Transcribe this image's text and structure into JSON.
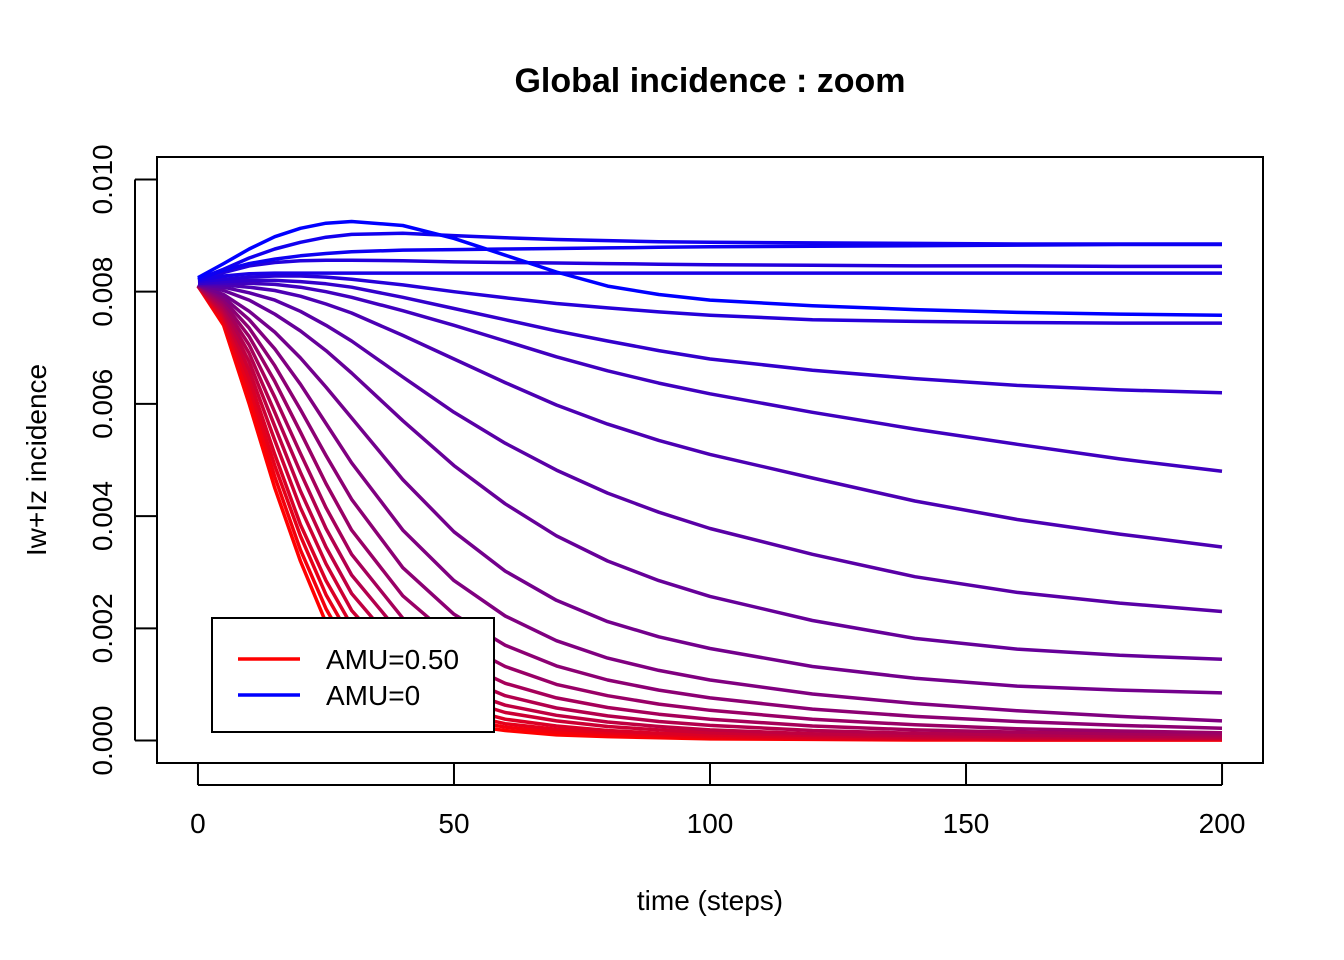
{
  "chart_data": {
    "type": "line",
    "title": "Global incidence : zoom",
    "xlabel": "time (steps)",
    "ylabel": "Iw+Iz incidence",
    "xlim": [
      -8,
      208
    ],
    "ylim": [
      -0.0004,
      0.0104
    ],
    "x_ticks": [
      "0",
      "50",
      "100",
      "150",
      "200"
    ],
    "y_ticks": [
      "0.000",
      "0.002",
      "0.004",
      "0.006",
      "0.008",
      "0.010"
    ],
    "legend": {
      "position": "bottom-left",
      "entries": [
        {
          "label": "AMU=0.50",
          "color": "#ff0000"
        },
        {
          "label": "AMU=0",
          "color": "#0000ff"
        }
      ]
    },
    "color_gradient": [
      "#ff0000",
      "#0000ff"
    ],
    "series_count": 21,
    "series_colors": [
      "#ff0000",
      "#f3000c",
      "#e60019",
      "#da0025",
      "#cc0033",
      "#bf0040",
      "#b3004c",
      "#a60059",
      "#990066",
      "#8c0073",
      "#800080",
      "#73008c",
      "#660099",
      "#5900a6",
      "#4c00b3",
      "#4000bf",
      "#3300cc",
      "#2600d9",
      "#1900e6",
      "#0d00f2",
      "#0000ff"
    ],
    "x": [
      0,
      5,
      10,
      15,
      20,
      25,
      30,
      40,
      50,
      60,
      70,
      80,
      90,
      100,
      120,
      140,
      160,
      180,
      200
    ],
    "series": [
      {
        "values": [
          0.0081,
          0.0074,
          0.006,
          0.0045,
          0.0032,
          0.0021,
          0.00135,
          0.0006,
          0.0003,
          0.00018,
          0.0001,
          7e-05,
          5e-05,
          3e-05,
          2e-05,
          1e-05,
          1e-05,
          1e-05,
          1e-05
        ]
      },
      {
        "values": [
          0.0081,
          0.00745,
          0.00615,
          0.0047,
          0.0034,
          0.00235,
          0.00155,
          0.00075,
          0.0004,
          0.00024,
          0.00015,
          0.0001,
          7e-05,
          5e-05,
          3e-05,
          2e-05,
          1e-05,
          1e-05,
          1e-05
        ]
      },
      {
        "values": [
          0.0081,
          0.0075,
          0.0063,
          0.0049,
          0.00365,
          0.0026,
          0.0018,
          0.0009,
          0.0005,
          0.0003,
          0.0002,
          0.00014,
          0.0001,
          7e-05,
          4e-05,
          3e-05,
          2e-05,
          2e-05,
          2e-05
        ]
      },
      {
        "values": [
          0.0081,
          0.00755,
          0.00645,
          0.0051,
          0.00385,
          0.00285,
          0.00205,
          0.0011,
          0.00062,
          0.00038,
          0.00026,
          0.00018,
          0.00013,
          0.0001,
          6e-05,
          4e-05,
          3e-05,
          3e-05,
          3e-05
        ]
      },
      {
        "values": [
          0.0081,
          0.0076,
          0.0066,
          0.00535,
          0.00415,
          0.00315,
          0.00232,
          0.0013,
          0.00078,
          0.0005,
          0.00035,
          0.00025,
          0.00019,
          0.00014,
          9e-05,
          6e-05,
          5e-05,
          4e-05,
          4e-05
        ]
      },
      {
        "values": [
          0.0081,
          0.00765,
          0.00675,
          0.0056,
          0.00445,
          0.00345,
          0.00262,
          0.00155,
          0.00095,
          0.00063,
          0.00045,
          0.00033,
          0.00025,
          0.00019,
          0.00012,
          9e-05,
          7e-05,
          6e-05,
          5e-05
        ]
      },
      {
        "values": [
          0.0081,
          0.0077,
          0.0069,
          0.00585,
          0.00478,
          0.00378,
          0.00295,
          0.00185,
          0.00118,
          0.0008,
          0.00058,
          0.00044,
          0.00034,
          0.00027,
          0.00018,
          0.00013,
          0.0001,
          8e-05,
          7e-05
        ]
      },
      {
        "values": [
          0.0081,
          0.00775,
          0.00705,
          0.00612,
          0.00512,
          0.00415,
          0.00332,
          0.00218,
          0.00145,
          0.00102,
          0.00076,
          0.00059,
          0.00047,
          0.00038,
          0.00026,
          0.00019,
          0.00015,
          0.00012,
          0.0001
        ]
      },
      {
        "values": [
          0.00812,
          0.0078,
          0.0072,
          0.0064,
          0.0055,
          0.00458,
          0.00375,
          0.00258,
          0.0018,
          0.00132,
          0.001,
          0.0008,
          0.00065,
          0.00054,
          0.00038,
          0.00028,
          0.00021,
          0.00017,
          0.00014
        ]
      },
      {
        "values": [
          0.00812,
          0.00785,
          0.00735,
          0.00668,
          0.0059,
          0.00508,
          0.0043,
          0.00308,
          0.00225,
          0.0017,
          0.00133,
          0.00108,
          0.0009,
          0.00076,
          0.00056,
          0.00043,
          0.00034,
          0.00027,
          0.00022
        ]
      },
      {
        "values": [
          0.00812,
          0.0079,
          0.0075,
          0.00698,
          0.00635,
          0.00565,
          0.00495,
          0.00375,
          0.00285,
          0.00222,
          0.00178,
          0.00147,
          0.00125,
          0.00108,
          0.00083,
          0.00066,
          0.00053,
          0.00043,
          0.00035
        ]
      },
      {
        "values": [
          0.00812,
          0.00795,
          0.00765,
          0.00728,
          0.00682,
          0.0063,
          0.00575,
          0.00465,
          0.00372,
          0.00302,
          0.0025,
          0.00212,
          0.00185,
          0.00164,
          0.00132,
          0.00111,
          0.00097,
          0.0009,
          0.00085
        ]
      },
      {
        "values": [
          0.00813,
          0.00802,
          0.00785,
          0.0076,
          0.0073,
          0.00695,
          0.00655,
          0.0057,
          0.0049,
          0.00422,
          0.00365,
          0.0032,
          0.00285,
          0.00257,
          0.00214,
          0.00182,
          0.00163,
          0.00152,
          0.00145
        ]
      },
      {
        "values": [
          0.00813,
          0.00808,
          0.00798,
          0.00785,
          0.00765,
          0.0074,
          0.00712,
          0.00648,
          0.00585,
          0.0053,
          0.00482,
          0.00441,
          0.00407,
          0.00378,
          0.00332,
          0.00292,
          0.00264,
          0.00245,
          0.0023
        ]
      },
      {
        "values": [
          0.00814,
          0.00812,
          0.00808,
          0.00802,
          0.00792,
          0.00778,
          0.00762,
          0.00722,
          0.0068,
          0.00638,
          0.00598,
          0.00564,
          0.00535,
          0.0051,
          0.00468,
          0.00427,
          0.00394,
          0.00368,
          0.00345
        ]
      },
      {
        "values": [
          0.00815,
          0.00815,
          0.00815,
          0.00813,
          0.00808,
          0.008,
          0.0079,
          0.00766,
          0.0074,
          0.00712,
          0.00684,
          0.00659,
          0.00637,
          0.00618,
          0.00585,
          0.00555,
          0.00528,
          0.00502,
          0.0048
        ]
      },
      {
        "values": [
          0.00815,
          0.00818,
          0.0082,
          0.0082,
          0.00818,
          0.00814,
          0.00808,
          0.0079,
          0.0077,
          0.0075,
          0.0073,
          0.00712,
          0.00695,
          0.0068,
          0.0066,
          0.00645,
          0.00633,
          0.00625,
          0.0062
        ]
      },
      {
        "values": [
          0.00818,
          0.00822,
          0.00826,
          0.00828,
          0.00828,
          0.00826,
          0.00822,
          0.00812,
          0.008,
          0.00789,
          0.00779,
          0.00771,
          0.00764,
          0.00758,
          0.0075,
          0.00747,
          0.00745,
          0.00744,
          0.00744
        ]
      },
      {
        "values": [
          0.0082,
          0.00828,
          0.00832,
          0.00833,
          0.00833,
          0.00833,
          0.00833,
          0.00833,
          0.00833,
          0.00833,
          0.00833,
          0.00833,
          0.00833,
          0.00833,
          0.00833,
          0.00833,
          0.00833,
          0.00833,
          0.00833
        ]
      },
      {
        "values": [
          0.00822,
          0.00838,
          0.0085,
          0.00858,
          0.00864,
          0.00868,
          0.00871,
          0.00874,
          0.00875,
          0.00876,
          0.00877,
          0.00878,
          0.00879,
          0.0088,
          0.00881,
          0.00882,
          0.00883,
          0.00884,
          0.00884
        ]
      },
      {
        "values": [
          0.00825,
          0.0085,
          0.00876,
          0.00898,
          0.00913,
          0.00922,
          0.00925,
          0.00918,
          0.00895,
          0.00865,
          0.00835,
          0.0081,
          0.00795,
          0.00785,
          0.00775,
          0.00768,
          0.00763,
          0.0076,
          0.00758
        ]
      }
    ],
    "extra_curves": [
      {
        "color": "#1100ee",
        "values": [
          0.00822,
          0.0084,
          0.0086,
          0.00876,
          0.00888,
          0.00897,
          0.00902,
          0.00904,
          0.009,
          0.00896,
          0.00893,
          0.00891,
          0.00889,
          0.00888,
          0.00887,
          0.00886,
          0.00885,
          0.00885,
          0.00885
        ]
      },
      {
        "color": "#2200dd",
        "values": [
          0.00821,
          0.00834,
          0.00846,
          0.00852,
          0.00855,
          0.00856,
          0.00856,
          0.00855,
          0.00853,
          0.00852,
          0.00851,
          0.0085,
          0.00849,
          0.00848,
          0.00847,
          0.00846,
          0.00846,
          0.00845,
          0.00845
        ]
      }
    ]
  }
}
